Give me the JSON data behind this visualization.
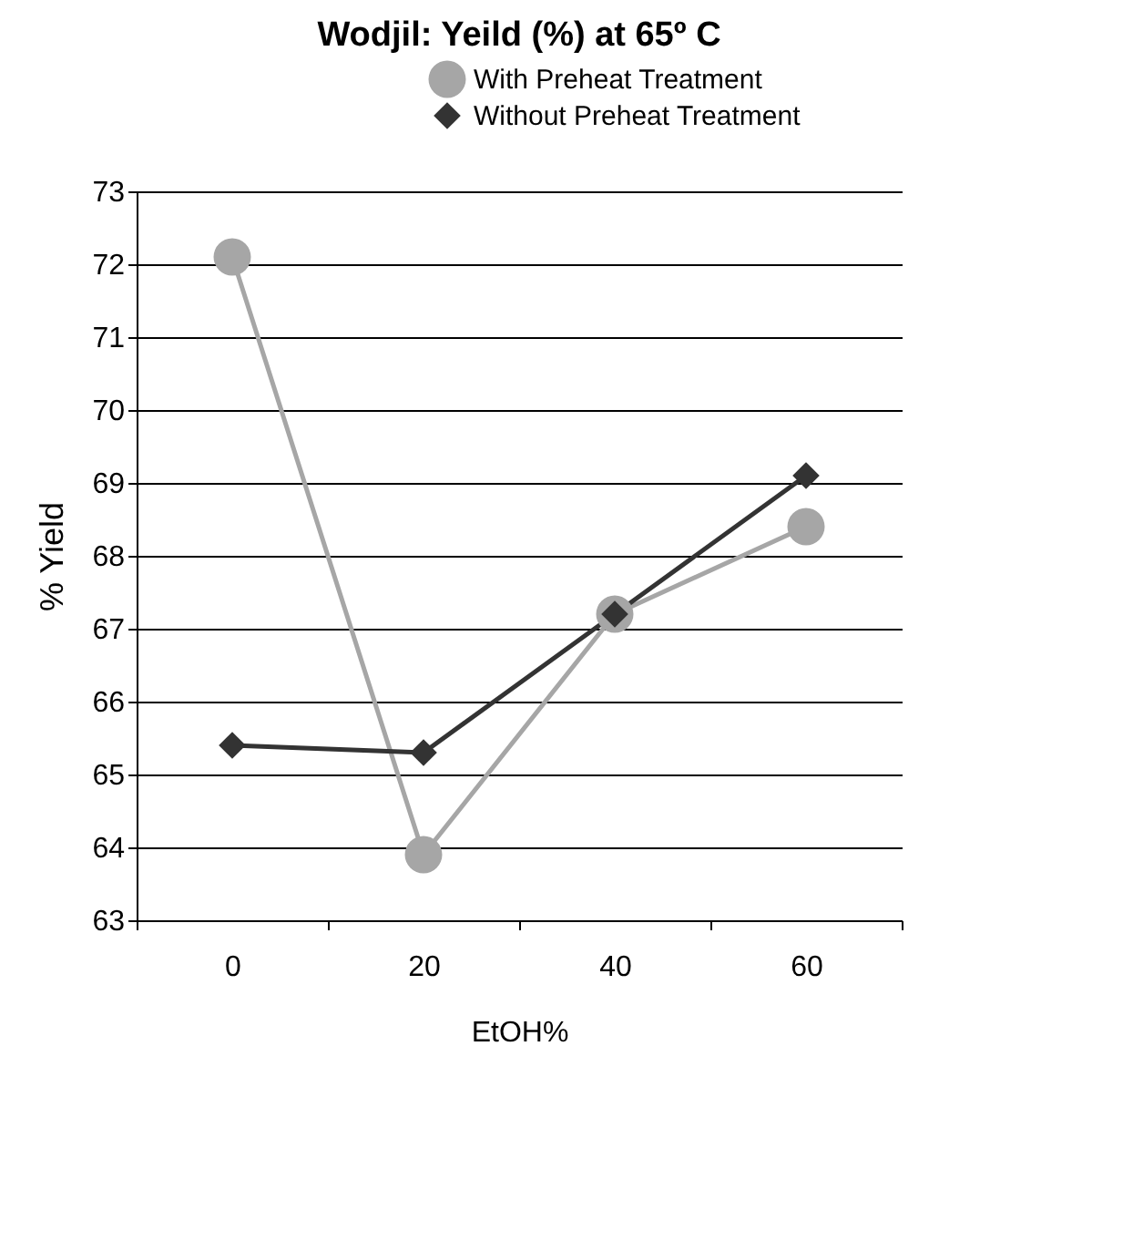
{
  "chart_data": {
    "type": "line",
    "title": "Wodjil: Yeild (%) at 65º C",
    "xlabel": "EtOH%",
    "ylabel": "% Yield",
    "categories": [
      "0",
      "20",
      "40",
      "60"
    ],
    "series": [
      {
        "name": "With Preheat Treatment",
        "color": "#a6a6a6",
        "marker": "circle",
        "values": [
          72.1,
          63.9,
          67.2,
          68.4
        ]
      },
      {
        "name": "Without Preheat Treatment",
        "color": "#333333",
        "marker": "diamond",
        "values": [
          65.4,
          65.3,
          67.2,
          69.1
        ]
      }
    ],
    "ylim": [
      63,
      73
    ],
    "yticks": [
      63,
      64,
      65,
      66,
      67,
      68,
      69,
      70,
      71,
      72,
      73
    ],
    "grid": "y",
    "legend": "top right"
  }
}
